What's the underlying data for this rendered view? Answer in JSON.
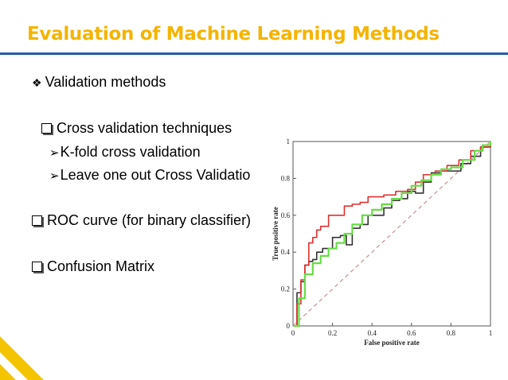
{
  "slide": {
    "title": "Evaluation of Machine Learning Methods",
    "items": [
      {
        "level": 0,
        "bullet": "diamond",
        "text": "Validation methods"
      },
      {
        "level": 1,
        "bullet": "box",
        "text": "Cross validation techniques"
      },
      {
        "level": 2,
        "bullet": "arrow",
        "text": "K-fold cross validation"
      },
      {
        "level": 2,
        "bullet": "arrow",
        "text": "Leave one out Cross Validatio"
      },
      {
        "level": 0,
        "bullet": "box",
        "text": "ROC curve (for binary classifier)"
      },
      {
        "level": 0,
        "bullet": "box",
        "text": "Confusion Matrix"
      }
    ]
  },
  "colors": {
    "title": "#f4b400",
    "rule": "#1f5fa8",
    "corner_accent": "#f5c400",
    "series_black": "#333333",
    "series_red": "#e03030",
    "series_green": "#66dd44",
    "diagonal": "#c89090"
  },
  "chart_data": {
    "type": "line",
    "xlabel": "False positive rate",
    "ylabel": "True positive rate",
    "xlim": [
      0,
      1
    ],
    "ylim": [
      0,
      1
    ],
    "x_ticks": [
      "0",
      "0.2",
      "0.4",
      "0.6",
      "0.8",
      "1"
    ],
    "y_ticks": [
      "0",
      "0.2",
      "0.4",
      "0.6",
      "0.8",
      "1"
    ],
    "grid": false,
    "legend": "none",
    "diagonal": {
      "x": [
        0,
        1
      ],
      "y": [
        0,
        1
      ],
      "style": "dashed"
    },
    "series": [
      {
        "color": "black",
        "x": [
          0,
          0.02,
          0.04,
          0.06,
          0.08,
          0.1,
          0.12,
          0.15,
          0.2,
          0.24,
          0.27,
          0.3,
          0.34,
          0.38,
          0.42,
          0.46,
          0.5,
          0.54,
          0.58,
          0.62,
          0.66,
          0.7,
          0.75,
          0.8,
          0.85,
          0.9,
          0.95,
          1.0
        ],
        "y": [
          0,
          0.18,
          0.24,
          0.33,
          0.35,
          0.36,
          0.4,
          0.42,
          0.48,
          0.49,
          0.44,
          0.53,
          0.55,
          0.6,
          0.6,
          0.64,
          0.68,
          0.69,
          0.73,
          0.72,
          0.78,
          0.83,
          0.84,
          0.84,
          0.88,
          0.92,
          0.97,
          1.0
        ]
      },
      {
        "color": "red",
        "x": [
          0,
          0.02,
          0.04,
          0.06,
          0.08,
          0.1,
          0.12,
          0.14,
          0.18,
          0.22,
          0.26,
          0.3,
          0.34,
          0.38,
          0.42,
          0.46,
          0.52,
          0.58,
          0.62,
          0.66,
          0.72,
          0.78,
          0.84,
          0.9,
          0.95,
          1.0
        ],
        "y": [
          0,
          0.12,
          0.25,
          0.33,
          0.45,
          0.48,
          0.52,
          0.54,
          0.6,
          0.6,
          0.65,
          0.66,
          0.67,
          0.7,
          0.7,
          0.71,
          0.73,
          0.74,
          0.78,
          0.82,
          0.84,
          0.87,
          0.9,
          0.95,
          0.97,
          1.0
        ]
      },
      {
        "color": "green",
        "x": [
          0,
          0.03,
          0.06,
          0.1,
          0.14,
          0.18,
          0.22,
          0.26,
          0.3,
          0.35,
          0.4,
          0.45,
          0.5,
          0.55,
          0.6,
          0.65,
          0.7,
          0.75,
          0.8,
          0.86,
          0.92,
          0.96,
          1.0
        ],
        "y": [
          0,
          0.15,
          0.28,
          0.34,
          0.38,
          0.42,
          0.45,
          0.5,
          0.55,
          0.6,
          0.63,
          0.66,
          0.69,
          0.72,
          0.76,
          0.79,
          0.82,
          0.85,
          0.86,
          0.9,
          0.95,
          0.98,
          1.0
        ]
      }
    ]
  }
}
